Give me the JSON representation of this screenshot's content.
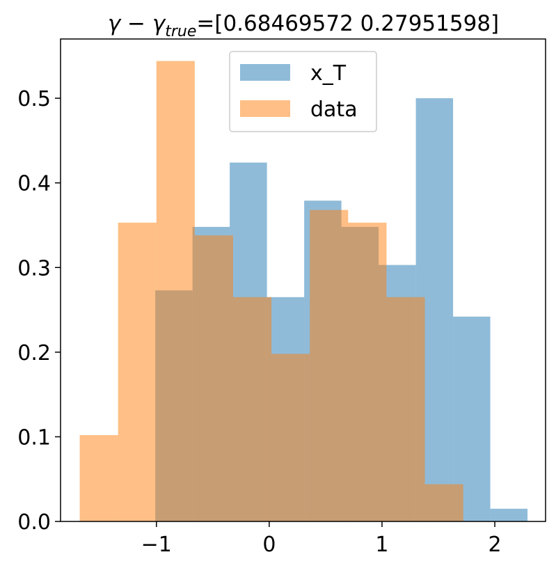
{
  "chart_data": {
    "type": "bar",
    "title": {
      "prefix": "γ − γ",
      "subscript": "true",
      "suffix": "=[0.68469572 0.27951598]"
    },
    "xlabel": "",
    "ylabel": "",
    "xlim": [
      -1.85,
      2.45
    ],
    "ylim": [
      0,
      0.57
    ],
    "xticks": [
      {
        "value": -1,
        "label": "−1"
      },
      {
        "value": 0,
        "label": "0"
      },
      {
        "value": 1,
        "label": "1"
      },
      {
        "value": 2,
        "label": "2"
      }
    ],
    "yticks": [
      {
        "value": 0.0,
        "label": "0.0"
      },
      {
        "value": 0.1,
        "label": "0.1"
      },
      {
        "value": 0.2,
        "label": "0.2"
      },
      {
        "value": 0.3,
        "label": "0.3"
      },
      {
        "value": 0.4,
        "label": "0.4"
      },
      {
        "value": 0.5,
        "label": "0.5"
      }
    ],
    "grid": false,
    "legend_position": "top-center",
    "series": [
      {
        "name": "x_T",
        "color": "#1f77b4",
        "alpha": 0.5,
        "bin_edges": [
          -1.01,
          -0.68,
          -0.35,
          -0.02,
          0.31,
          0.64,
          0.97,
          1.3,
          1.63,
          1.96,
          2.29
        ],
        "values": [
          0.273,
          0.348,
          0.424,
          0.265,
          0.379,
          0.348,
          0.303,
          0.5,
          0.242,
          0.015
        ]
      },
      {
        "name": "data",
        "color": "#ff7f0e",
        "alpha": 0.5,
        "bin_edges": [
          -1.68,
          -1.34,
          -1.0,
          -0.66,
          -0.32,
          0.02,
          0.36,
          0.7,
          1.04,
          1.38,
          1.72
        ],
        "values": [
          0.102,
          0.353,
          0.544,
          0.338,
          0.265,
          0.198,
          0.368,
          0.353,
          0.265,
          0.044
        ]
      }
    ]
  }
}
